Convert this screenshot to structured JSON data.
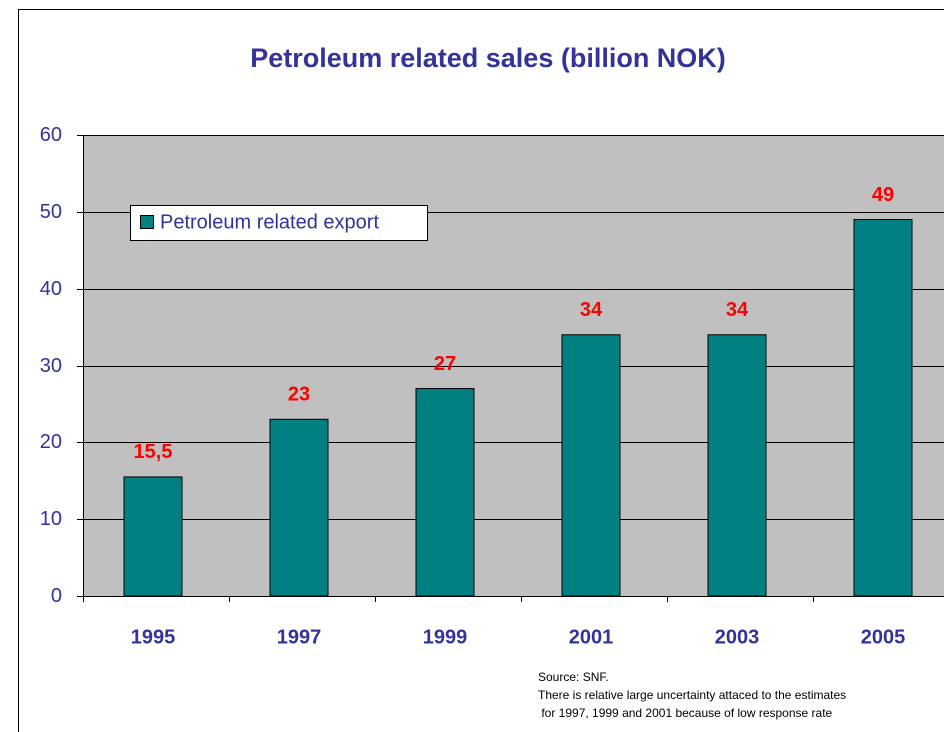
{
  "chart_data": {
    "type": "bar",
    "title": "Petroleum related sales (billion NOK)",
    "categories": [
      "1995",
      "1997",
      "1999",
      "2001",
      "2003",
      "2005"
    ],
    "series": [
      {
        "name": "Petroleum related export",
        "color": "#008080",
        "values": [
          15.5,
          23,
          27,
          34,
          34,
          49
        ]
      }
    ],
    "value_labels": [
      "15,5",
      "23",
      "27",
      "34",
      "34",
      "49"
    ],
    "ylim": [
      0,
      60
    ],
    "yticks": [
      0,
      10,
      20,
      30,
      40,
      50,
      60
    ],
    "grid": true,
    "annotations": [
      "Source: SNF.",
      "There is relative large uncertainty attaced to the estimates",
      " for 1997, 1999 and 2001 because of low response rate"
    ]
  }
}
